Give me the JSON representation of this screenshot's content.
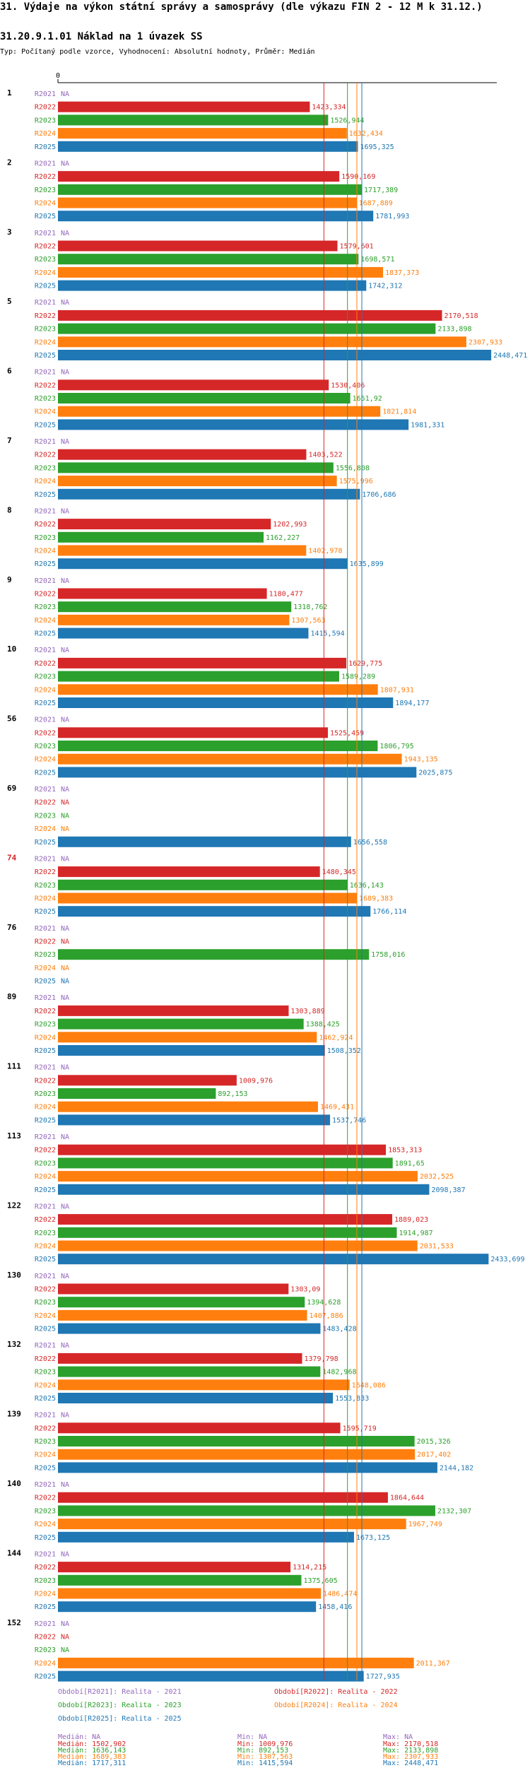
{
  "header": {
    "title": "31. Výdaje na výkon státní správy a samosprávy (dle výkazu FIN 2 - 12 M k 31.12.)",
    "subtitle": "31.20.9.1.01 Náklad na 1 úvazek SS",
    "typ": "Typ: Počítaný podle vzorce, Vyhodnocení: Absolutní hodnoty, Průměr: Medián"
  },
  "colors": {
    "R2021": "#9467bd",
    "R2022": "#d62728",
    "R2023": "#2ca02c",
    "R2024": "#ff7f0e",
    "R2025": "#1f77b4",
    "highlight": "#d62728"
  },
  "chart_data": {
    "type": "bar",
    "orientation": "horizontal",
    "axis_zero_label": "0",
    "xlim": [
      0,
      2480
    ],
    "na_label": "NA",
    "series_keys": [
      "R2021",
      "R2022",
      "R2023",
      "R2024",
      "R2025"
    ],
    "highlight_group": "74",
    "median_lines": [
      {
        "series": "R2022",
        "value": 1502.902
      },
      {
        "series": "R2023",
        "value": 1636.143
      },
      {
        "series": "R2024",
        "value": 1689.383
      },
      {
        "series": "R2025",
        "value": 1717.311
      }
    ],
    "groups": [
      {
        "id": "1",
        "values": [
          null,
          1423.334,
          1526.944,
          1632.434,
          1695.325
        ]
      },
      {
        "id": "2",
        "values": [
          null,
          1590.169,
          1717.389,
          1687.889,
          1781.993
        ]
      },
      {
        "id": "3",
        "values": [
          null,
          1579.601,
          1698.571,
          1837.373,
          1742.312
        ]
      },
      {
        "id": "5",
        "values": [
          null,
          2170.518,
          2133.898,
          2307.933,
          2448.471
        ]
      },
      {
        "id": "6",
        "values": [
          null,
          1530.406,
          1651.92,
          1821.814,
          1981.331
        ]
      },
      {
        "id": "7",
        "values": [
          null,
          1403.522,
          1556.808,
          1575.996,
          1706.686
        ]
      },
      {
        "id": "8",
        "values": [
          null,
          1202.993,
          1162.227,
          1402.978,
          1635.899
        ]
      },
      {
        "id": "9",
        "values": [
          null,
          1180.477,
          1318.762,
          1307.563,
          1415.594
        ]
      },
      {
        "id": "10",
        "values": [
          null,
          1629.775,
          1589.289,
          1807.931,
          1894.177
        ]
      },
      {
        "id": "56",
        "values": [
          null,
          1525.459,
          1806.795,
          1943.135,
          2025.875
        ]
      },
      {
        "id": "69",
        "values": [
          null,
          null,
          null,
          null,
          1656.558
        ]
      },
      {
        "id": "74",
        "values": [
          null,
          1480.345,
          1636.143,
          1689.383,
          1766.114
        ]
      },
      {
        "id": "76",
        "values": [
          null,
          null,
          1758.016,
          null,
          null
        ]
      },
      {
        "id": "89",
        "values": [
          null,
          1303.889,
          1388.425,
          1462.924,
          1508.352
        ]
      },
      {
        "id": "111",
        "values": [
          null,
          1009.976,
          892.153,
          1469.431,
          1537.746
        ]
      },
      {
        "id": "113",
        "values": [
          null,
          1853.313,
          1891.65,
          2032.525,
          2098.387
        ]
      },
      {
        "id": "122",
        "values": [
          null,
          1889.023,
          1914.987,
          2031.533,
          2433.699
        ]
      },
      {
        "id": "130",
        "values": [
          null,
          1303.09,
          1394.628,
          1407.886,
          1483.428
        ]
      },
      {
        "id": "132",
        "values": [
          null,
          1379.798,
          1482.968,
          1648.086,
          1553.833
        ]
      },
      {
        "id": "139",
        "values": [
          null,
          1595.719,
          2015.326,
          2017.402,
          2144.182
        ]
      },
      {
        "id": "140",
        "values": [
          null,
          1864.644,
          2132.307,
          1967.749,
          1673.125
        ]
      },
      {
        "id": "144",
        "values": [
          null,
          1314.215,
          1375.605,
          1486.474,
          1458.416
        ]
      },
      {
        "id": "152",
        "values": [
          null,
          null,
          null,
          2011.367,
          1727.935
        ]
      }
    ]
  },
  "legend": {
    "R2021": "Období[R2021]: Realita - 2021",
    "R2022": "Období[R2022]: Realita - 2022",
    "R2023": "Období[R2023]: Realita - 2023",
    "R2024": "Období[R2024]: Realita - 2024",
    "R2025": "Období[R2025]: Realita - 2025"
  },
  "stats": [
    {
      "series": "R2021",
      "median": "Medián: NA",
      "min": "Min: NA",
      "max": "Max: NA"
    },
    {
      "series": "R2022",
      "median": "Medián: 1502,902",
      "min": "Min: 1009,976",
      "max": "Max: 2170,518"
    },
    {
      "series": "R2023",
      "median": "Medián: 1636,143",
      "min": "Min: 892,153",
      "max": "Max: 2133,898"
    },
    {
      "series": "R2024",
      "median": "Medián: 1689,383",
      "min": "Min: 1307,563",
      "max": "Max: 2307,933"
    },
    {
      "series": "R2025",
      "median": "Medián: 1717,311",
      "min": "Min: 1415,594",
      "max": "Max: 2448,471"
    }
  ]
}
